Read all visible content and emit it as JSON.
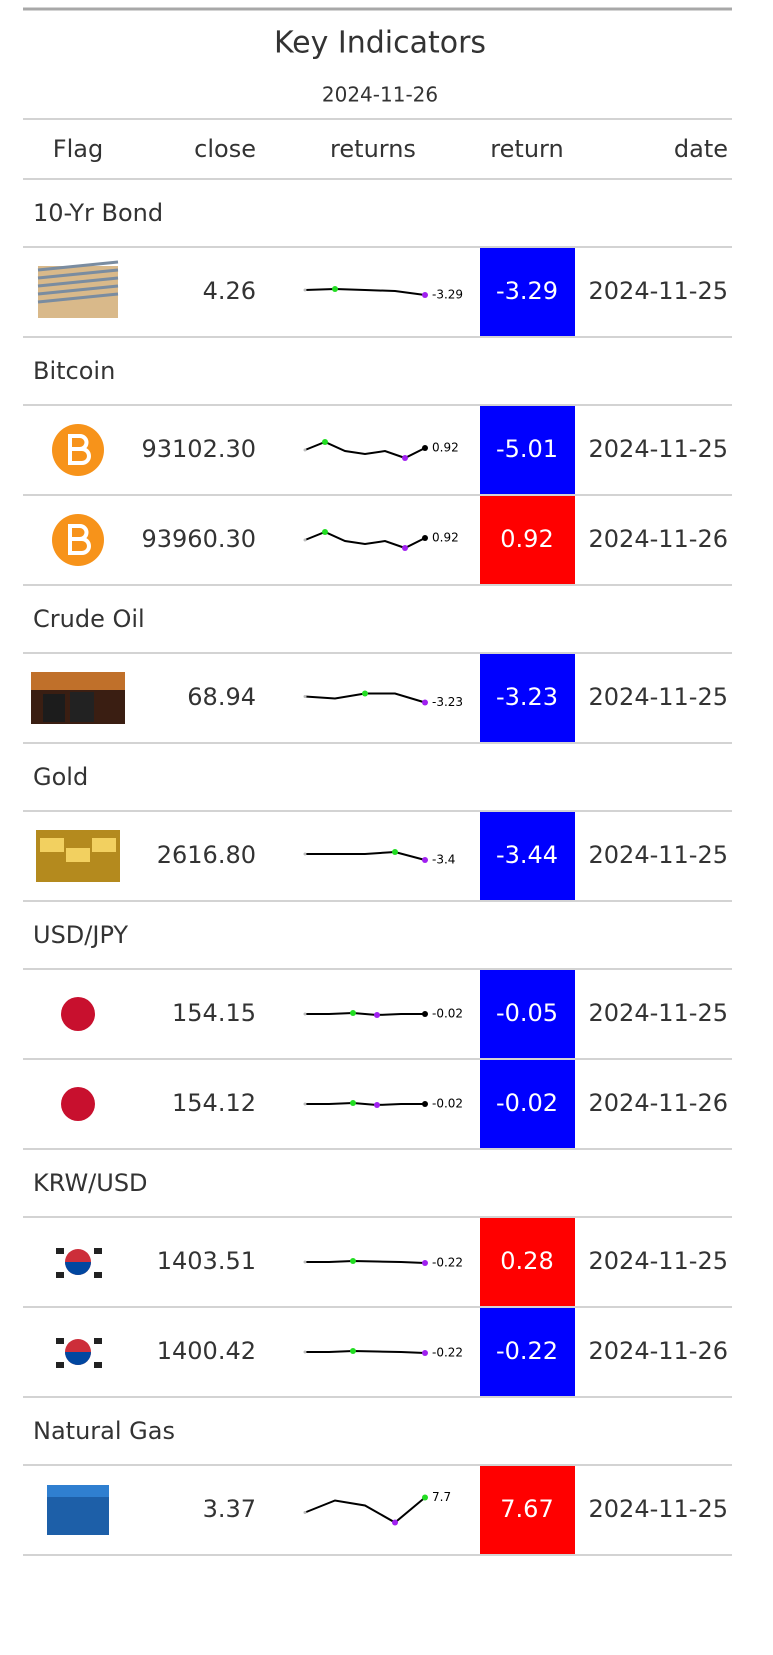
{
  "title": "Key Indicators",
  "subtitle": "2024-11-26",
  "columns": [
    "Flag",
    "close",
    "returns",
    "return",
    "date"
  ],
  "groups": [
    {
      "name": "10-Yr Bond",
      "icon": "bond",
      "rows": [
        {
          "close": "4.26",
          "spark": [
            5,
            6,
            5,
            4,
            0
          ],
          "spark_label": -3.29,
          "return": -3.29,
          "date": "2024-11-25"
        }
      ]
    },
    {
      "name": "Bitcoin",
      "icon": "bitcoin",
      "rows": [
        {
          "close": "93102.30",
          "spark": [
            8,
            16,
            7,
            4,
            7,
            0,
            10
          ],
          "spark_label": 0.92,
          "return": -5.01,
          "date": "2024-11-25"
        },
        {
          "close": "93960.30",
          "spark": [
            8,
            16,
            7,
            4,
            7,
            0,
            10
          ],
          "spark_label": 0.92,
          "return": 0.92,
          "date": "2024-11-26"
        }
      ]
    },
    {
      "name": "Crude Oil",
      "icon": "oil",
      "rows": [
        {
          "close": "68.94",
          "spark": [
            6,
            4,
            9,
            9,
            0
          ],
          "spark_label": -3.23,
          "return": -3.23,
          "date": "2024-11-25"
        }
      ]
    },
    {
      "name": "Gold",
      "icon": "gold",
      "rows": [
        {
          "close": "2616.80",
          "spark": [
            6,
            6,
            6,
            8,
            0
          ],
          "spark_label": -3.4,
          "return": -3.44,
          "date": "2024-11-25"
        }
      ]
    },
    {
      "name": "USD/JPY",
      "icon": "japan",
      "rows": [
        {
          "close": "154.15",
          "spark": [
            1,
            1,
            2,
            0,
            1,
            1
          ],
          "spark_label": -0.02,
          "return": -0.05,
          "date": "2024-11-25"
        },
        {
          "close": "154.12",
          "spark": [
            1,
            1,
            2,
            0,
            1,
            1
          ],
          "spark_label": -0.02,
          "return": -0.02,
          "date": "2024-11-26"
        }
      ]
    },
    {
      "name": "KRW/USD",
      "icon": "korea",
      "rows": [
        {
          "close": "1403.51",
          "spark": [
            1,
            1,
            2,
            1.5,
            1,
            0
          ],
          "spark_label": -0.22,
          "return": 0.28,
          "date": "2024-11-25"
        },
        {
          "close": "1400.42",
          "spark": [
            1,
            1,
            2,
            1.5,
            1,
            0
          ],
          "spark_label": -0.22,
          "return": -0.22,
          "date": "2024-11-26"
        }
      ]
    },
    {
      "name": "Natural Gas",
      "icon": "gas",
      "rows": [
        {
          "close": "3.37",
          "spark": [
            10,
            22,
            17,
            0,
            25
          ],
          "spark_label": 7.7,
          "return": 7.67,
          "date": "2024-11-25"
        }
      ]
    }
  ]
}
